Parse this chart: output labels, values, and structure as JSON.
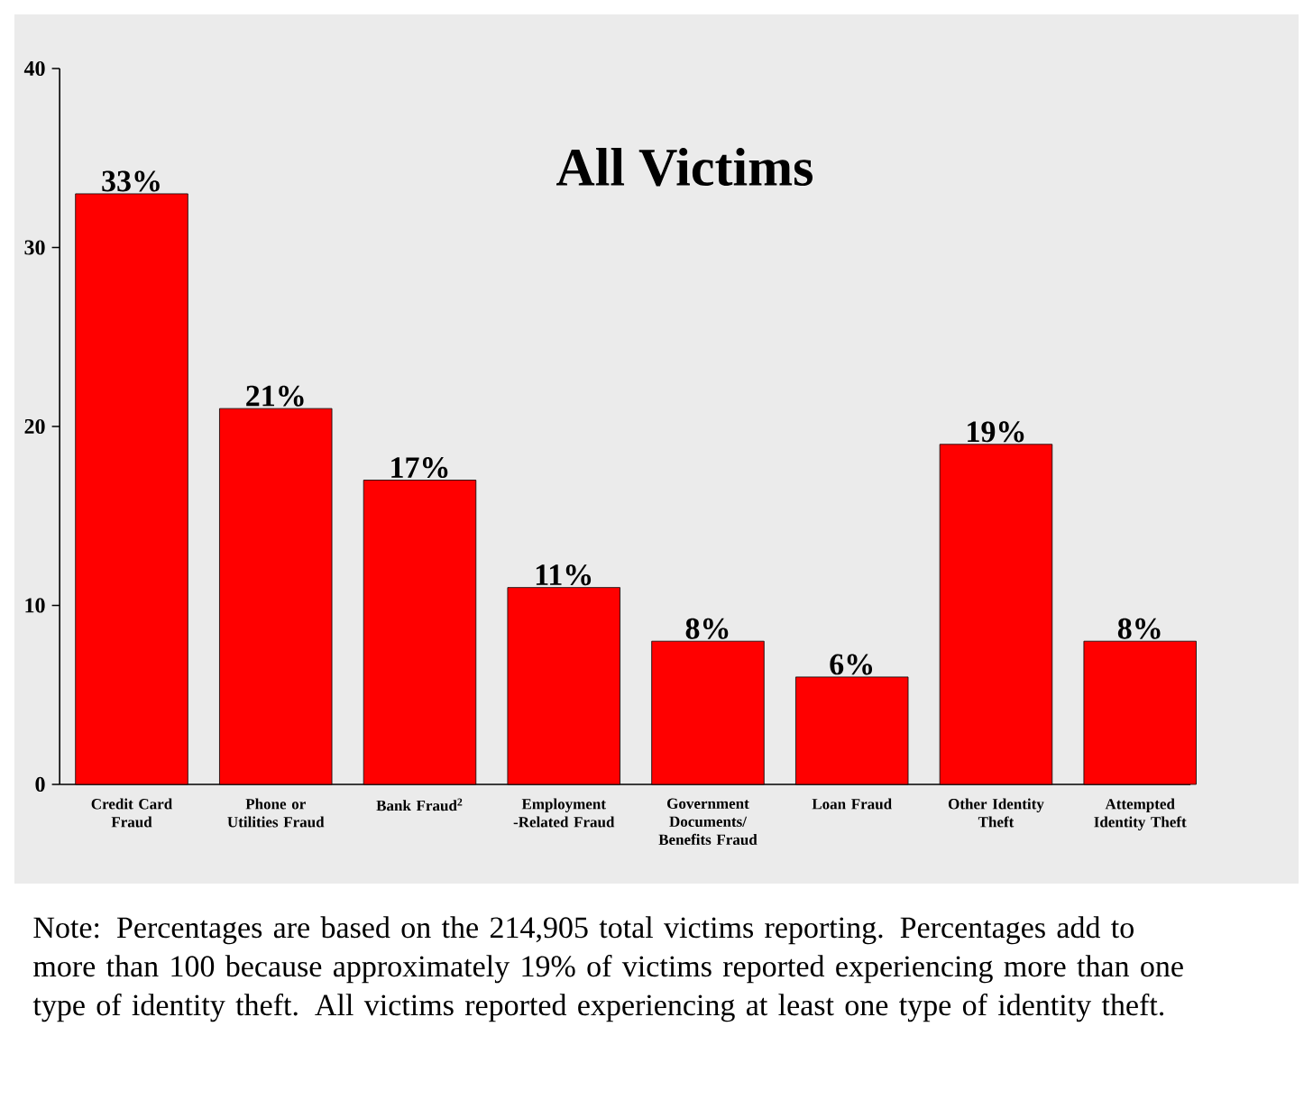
{
  "chart_data": {
    "type": "bar",
    "title": "All Victims",
    "categories": [
      "Credit Card Fraud",
      "Phone or Utilities Fraud",
      "Bank Fraud$^{2}$",
      "Employment -Related Fraud",
      "Government Documents/ Benefits Fraud",
      "Loan Fraud",
      "Other Identity Theft",
      "Attempted Identity Theft"
    ],
    "values": [
      33,
      21,
      17,
      11,
      8,
      6,
      19,
      8
    ],
    "value_labels": [
      "33%",
      "21%",
      "17%",
      "11%",
      "8%",
      "6%",
      "19%",
      "8%"
    ],
    "color": "#ff0000",
    "ylim": [
      0,
      40
    ],
    "yticks": [
      0,
      10,
      20,
      30,
      40
    ],
    "annotations": [
      "Note: Percentages are based on the 214,905 total victims reporting. Percentages add to more than 100 because approximately 19% of victims reported experiencing more than one type of identity theft.  All victims reported experiencing at least one type of identity theft."
    ]
  }
}
